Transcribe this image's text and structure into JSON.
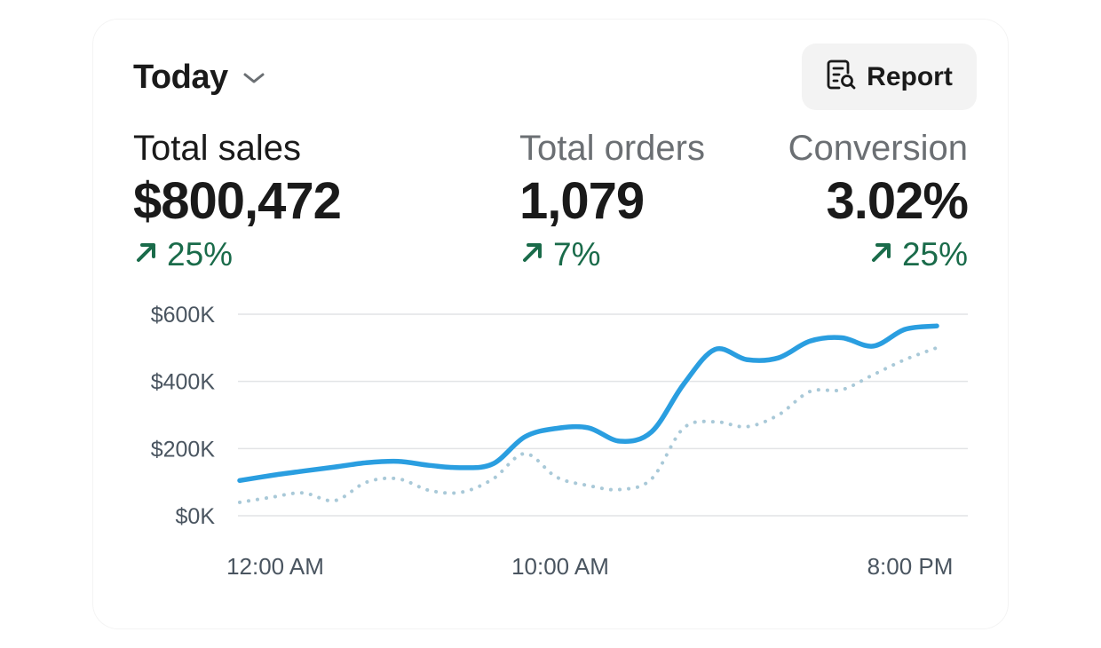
{
  "header": {
    "period_label": "Today",
    "period_icon": "chevron-down-icon",
    "report_label": "Report",
    "report_icon": "report-search-icon"
  },
  "metrics": {
    "sales": {
      "label": "Total sales",
      "value": "$800,472",
      "change": "25%",
      "trend": "up"
    },
    "orders": {
      "label": "Total orders",
      "value": "1,079",
      "change": "7%",
      "trend": "up"
    },
    "conversion": {
      "label": "Conversion",
      "value": "3.02%",
      "change": "25%",
      "trend": "up"
    }
  },
  "colors": {
    "primary_series": "#2a9ee0",
    "comparison_series": "#a9c9d8",
    "positive_change": "#1a6b4a",
    "gridline": "#e2e4e6"
  },
  "chart_data": {
    "type": "line",
    "x_tick_labels": [
      "12:00 AM",
      "10:00 AM",
      "8:00 PM"
    ],
    "y_tick_labels": [
      "$0K",
      "$200K",
      "$400K",
      "$600K"
    ],
    "ylim": [
      0,
      600
    ],
    "xlim": [
      0,
      22
    ],
    "grid": true,
    "series": [
      {
        "style": "solid",
        "color": "#2a9ee0",
        "x": [
          0,
          1,
          2,
          3,
          4,
          5,
          6,
          7,
          8,
          9,
          10,
          11,
          12,
          13,
          14,
          15,
          16,
          17,
          18,
          19,
          20,
          21,
          22
        ],
        "y": [
          105,
          120,
          133,
          145,
          158,
          162,
          150,
          143,
          155,
          235,
          260,
          262,
          222,
          250,
          390,
          495,
          465,
          470,
          520,
          530,
          505,
          555,
          565
        ]
      },
      {
        "style": "dotted",
        "color": "#a9c9d8",
        "x": [
          0,
          1,
          2,
          3,
          4,
          5,
          6,
          7,
          8,
          9,
          10,
          11,
          12,
          13,
          14,
          15,
          16,
          17,
          18,
          19,
          20,
          21,
          22
        ],
        "y": [
          40,
          55,
          68,
          45,
          100,
          110,
          75,
          70,
          110,
          185,
          115,
          90,
          78,
          110,
          260,
          280,
          265,
          300,
          370,
          375,
          420,
          465,
          500
        ]
      }
    ]
  }
}
